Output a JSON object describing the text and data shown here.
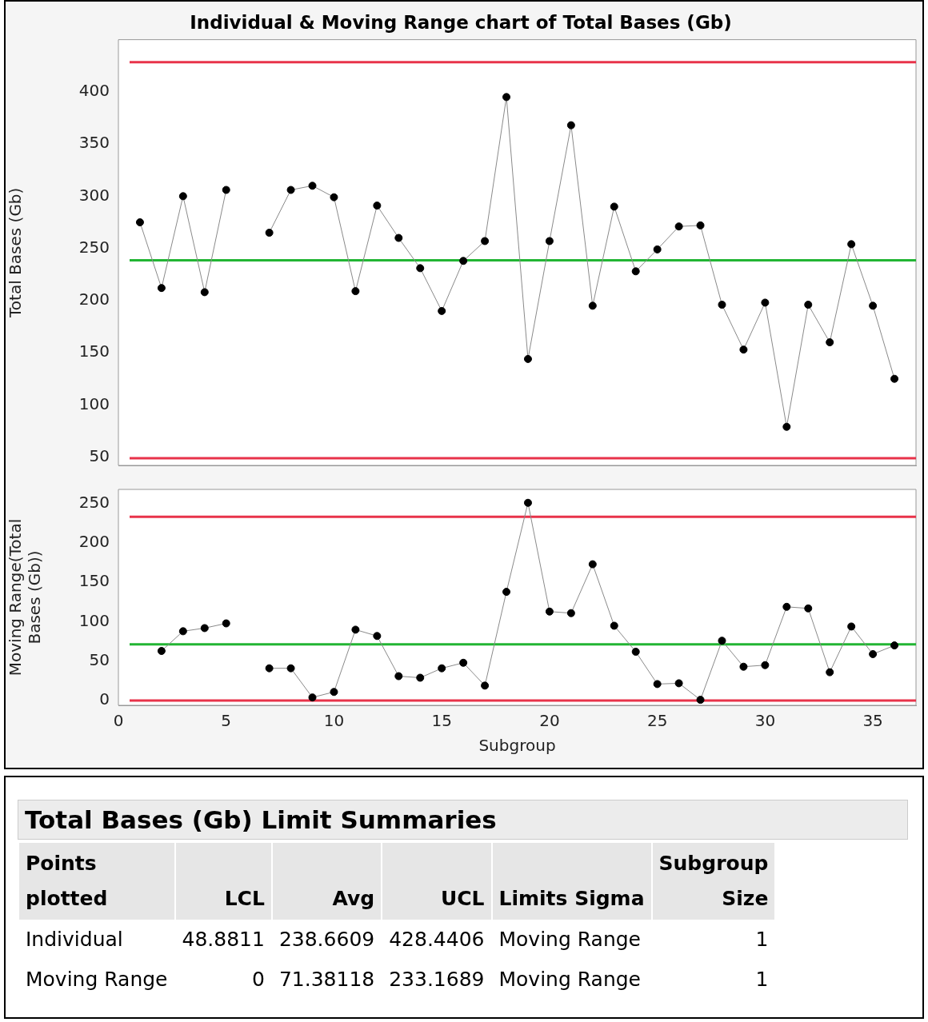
{
  "chart_data": [
    {
      "type": "line",
      "title": "Individual & Moving Range chart of Total Bases (Gb)",
      "ylabel": "Total Bases (Gb)",
      "x": [
        1,
        2,
        3,
        4,
        5,
        6,
        7,
        8,
        9,
        10,
        11,
        12,
        13,
        14,
        15,
        16,
        17,
        18,
        19,
        20,
        21,
        22,
        23,
        24,
        25,
        26,
        27,
        28,
        29,
        30,
        31,
        32,
        33,
        34,
        35,
        36
      ],
      "values": [
        275,
        212,
        300,
        208,
        306,
        null,
        265,
        306,
        310,
        299,
        209,
        291,
        260,
        231,
        190,
        238,
        257,
        395,
        144,
        257,
        368,
        195,
        290,
        228,
        249,
        271,
        272,
        196,
        153,
        198,
        79,
        196,
        160,
        254,
        195,
        125
      ],
      "color": "#000000",
      "marker": "circle",
      "xlim": [
        0,
        37
      ],
      "xticks": [
        0,
        5,
        10,
        15,
        20,
        25,
        30,
        35
      ],
      "ylim": [
        42,
        450
      ],
      "yticks": [
        50,
        100,
        150,
        200,
        250,
        300,
        350,
        400
      ],
      "tick_labels": "y",
      "ref_lines": [
        {
          "axis": "y",
          "value": 428.4406,
          "color": "#e8334a"
        },
        {
          "axis": "y",
          "value": 238.6609,
          "color": "#22b533"
        },
        {
          "axis": "y",
          "value": 48.8811,
          "color": "#e8334a"
        }
      ]
    },
    {
      "type": "line",
      "xlabel": "Subgroup",
      "ylabel": "Moving Range(Total Bases (Gb))",
      "x": [
        2,
        3,
        4,
        5,
        6,
        7,
        8,
        9,
        10,
        11,
        12,
        13,
        14,
        15,
        16,
        17,
        18,
        19,
        20,
        21,
        22,
        23,
        24,
        25,
        26,
        27,
        28,
        29,
        30,
        31,
        32,
        33,
        34,
        35,
        36
      ],
      "values": [
        63,
        88,
        92,
        98,
        null,
        41,
        41,
        4,
        11,
        90,
        82,
        31,
        29,
        41,
        48,
        19,
        138,
        251,
        113,
        111,
        173,
        95,
        62,
        21,
        22,
        1,
        76,
        43,
        45,
        119,
        117,
        36,
        94,
        59,
        70
      ],
      "color": "#000000",
      "marker": "circle",
      "xlim": [
        0,
        37
      ],
      "xticks": [
        0,
        5,
        10,
        15,
        20,
        25,
        30,
        35
      ],
      "ylim": [
        -6,
        268
      ],
      "yticks": [
        0,
        50,
        100,
        150,
        200,
        250
      ],
      "ref_lines": [
        {
          "axis": "y",
          "value": 233.1689,
          "color": "#e8334a"
        },
        {
          "axis": "y",
          "value": 71.38118,
          "color": "#22b533"
        },
        {
          "axis": "y",
          "value": 0,
          "color": "#e8334a"
        }
      ]
    },
    {
      "type": "other",
      "title": "Total Bases (Gb) Limit Summaries",
      "categories": [
        "Points plotted",
        "LCL",
        "Avg",
        "UCL",
        "Limits Sigma",
        "Subgroup Size"
      ],
      "annotations": [
        "Individual",
        "48.8811",
        "238.6609",
        "428.4406",
        "Moving Range",
        "1",
        "Moving Range",
        "0",
        "71.38118",
        "233.1689",
        "Moving Range",
        "1"
      ]
    }
  ]
}
